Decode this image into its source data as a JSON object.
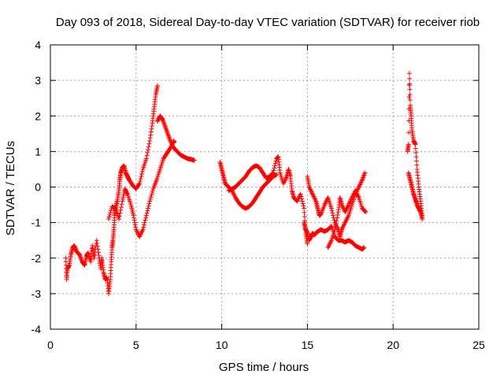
{
  "chart_data": {
    "type": "scatter",
    "title": "Day 093 of 2018, Sidereal Day-to-day VTEC variation (SDTVAR) for receiver riob",
    "xlabel": "GPS time / hours",
    "ylabel": "SDTVAR / TECUs",
    "xlim": [
      0,
      25
    ],
    "ylim": [
      -4,
      4
    ],
    "x_ticks": [
      0,
      5,
      10,
      15,
      20,
      25
    ],
    "y_ticks": [
      -4,
      -3,
      -2,
      -1,
      0,
      1,
      2,
      3,
      4
    ],
    "x_tick_labels": [
      "0",
      "5",
      "10",
      "15",
      "20",
      "25"
    ],
    "y_tick_labels": [
      "-4",
      "-3",
      "-2",
      "-1",
      "0",
      "1",
      "2",
      "3",
      "4"
    ],
    "grid": true,
    "marker": "+",
    "series": [
      {
        "name": "SDTVAR",
        "color": "#ff0000",
        "segments": [
          [
            [
              0.9,
              -2.0
            ],
            [
              0.95,
              -2.6
            ],
            [
              1.0,
              -2.3
            ],
            [
              1.1,
              -2.2
            ],
            [
              1.2,
              -1.9
            ],
            [
              1.3,
              -1.7
            ],
            [
              1.4,
              -1.65
            ],
            [
              1.5,
              -1.8
            ],
            [
              1.7,
              -1.9
            ],
            [
              1.85,
              -2.1
            ],
            [
              2.0,
              -2.2
            ],
            [
              2.1,
              -1.95
            ],
            [
              2.2,
              -1.85
            ],
            [
              2.35,
              -2.1
            ],
            [
              2.45,
              -1.65
            ],
            [
              2.55,
              -2.0
            ],
            [
              2.7,
              -1.5
            ],
            [
              2.85,
              -2.0
            ],
            [
              2.95,
              -2.3
            ],
            [
              3.0,
              -2.0
            ],
            [
              3.1,
              -2.4
            ],
            [
              3.2,
              -2.6
            ],
            [
              3.3,
              -2.55
            ],
            [
              3.4,
              -3.0
            ],
            [
              3.5,
              -2.6
            ],
            [
              3.55,
              -2.1
            ],
            [
              3.6,
              -1.7
            ],
            [
              3.65,
              -1.5
            ],
            [
              3.7,
              -1.2
            ],
            [
              3.75,
              -0.8
            ],
            [
              3.8,
              -0.6
            ],
            [
              3.9,
              -0.4
            ],
            [
              4.0,
              -0.1
            ],
            [
              4.05,
              0.2
            ],
            [
              4.1,
              0.4
            ],
            [
              4.2,
              0.55
            ],
            [
              4.3,
              0.6
            ],
            [
              4.4,
              0.4
            ],
            [
              4.5,
              0.3
            ],
            [
              4.6,
              0.2
            ],
            [
              4.8,
              0.05
            ],
            [
              5.0,
              -0.05
            ],
            [
              5.2,
              0.1
            ],
            [
              5.4,
              0.5
            ],
            [
              5.6,
              0.8
            ],
            [
              5.8,
              1.3
            ],
            [
              5.95,
              1.8
            ],
            [
              6.05,
              2.2
            ],
            [
              6.15,
              2.6
            ],
            [
              6.25,
              2.85
            ]
          ],
          [
            [
              3.4,
              -0.9
            ],
            [
              3.6,
              -0.55
            ],
            [
              3.8,
              -0.6
            ],
            [
              4.0,
              -0.9
            ],
            [
              4.2,
              -0.4
            ],
            [
              4.35,
              -0.05
            ],
            [
              4.5,
              -0.2
            ],
            [
              4.7,
              -0.5
            ],
            [
              4.85,
              -0.8
            ],
            [
              5.0,
              -1.2
            ],
            [
              5.2,
              -1.4
            ],
            [
              5.4,
              -1.2
            ],
            [
              5.6,
              -0.8
            ],
            [
              5.8,
              -0.4
            ],
            [
              6.0,
              -0.05
            ],
            [
              6.2,
              0.2
            ],
            [
              6.4,
              0.5
            ],
            [
              6.6,
              0.8
            ],
            [
              6.8,
              0.95
            ],
            [
              7.0,
              1.1
            ],
            [
              7.2,
              1.3
            ],
            [
              7.2,
              1.25
            ]
          ],
          [
            [
              6.25,
              1.85
            ],
            [
              6.4,
              2.0
            ],
            [
              6.55,
              1.9
            ],
            [
              6.7,
              1.7
            ],
            [
              6.85,
              1.5
            ],
            [
              7.0,
              1.3
            ],
            [
              7.2,
              1.1
            ],
            [
              7.4,
              1.0
            ],
            [
              7.6,
              0.9
            ],
            [
              7.8,
              0.85
            ],
            [
              8.0,
              0.8
            ],
            [
              8.2,
              0.78
            ],
            [
              8.4,
              0.75
            ]
          ],
          [
            [
              9.9,
              0.7
            ],
            [
              10.0,
              0.5
            ],
            [
              10.1,
              0.3
            ],
            [
              10.2,
              0.1
            ],
            [
              10.4,
              0.0
            ],
            [
              10.6,
              -0.1
            ],
            [
              10.8,
              -0.3
            ],
            [
              11.0,
              -0.45
            ],
            [
              11.2,
              -0.55
            ],
            [
              11.4,
              -0.6
            ],
            [
              11.6,
              -0.55
            ],
            [
              11.8,
              -0.45
            ],
            [
              12.0,
              -0.3
            ],
            [
              12.2,
              -0.15
            ],
            [
              12.4,
              0.0
            ],
            [
              12.6,
              0.1
            ],
            [
              12.8,
              0.2
            ],
            [
              13.0,
              0.3
            ],
            [
              13.2,
              0.35
            ]
          ],
          [
            [
              10.4,
              -0.1
            ],
            [
              10.6,
              -0.05
            ],
            [
              10.8,
              0.0
            ],
            [
              11.0,
              0.1
            ],
            [
              11.2,
              0.2
            ],
            [
              11.4,
              0.3
            ],
            [
              11.6,
              0.45
            ],
            [
              11.8,
              0.55
            ],
            [
              12.0,
              0.6
            ],
            [
              12.2,
              0.55
            ],
            [
              12.4,
              0.4
            ],
            [
              12.6,
              0.25
            ],
            [
              12.8,
              0.3
            ],
            [
              13.0,
              0.4
            ],
            [
              13.2,
              0.8
            ],
            [
              13.3,
              0.85
            ],
            [
              13.4,
              0.4
            ],
            [
              13.6,
              0.1
            ],
            [
              13.8,
              0.3
            ],
            [
              13.9,
              0.5
            ],
            [
              14.0,
              0.3
            ],
            [
              14.1,
              -0.1
            ],
            [
              14.2,
              -0.3
            ],
            [
              14.4,
              -0.4
            ],
            [
              14.6,
              -0.2
            ],
            [
              14.8,
              -0.6
            ],
            [
              14.9,
              -1.3
            ],
            [
              15.0,
              -1.6
            ]
          ],
          [
            [
              14.8,
              -1.0
            ],
            [
              14.9,
              -1.2
            ],
            [
              15.0,
              -1.3
            ],
            [
              15.1,
              -1.5
            ],
            [
              15.2,
              -1.4
            ],
            [
              15.3,
              -1.3
            ],
            [
              15.4,
              -1.35
            ],
            [
              15.5,
              -1.3
            ],
            [
              15.6,
              -1.25
            ],
            [
              15.8,
              -1.2
            ],
            [
              16.0,
              -1.25
            ],
            [
              16.2,
              -1.2
            ],
            [
              16.4,
              -1.1
            ],
            [
              16.6,
              -1.4
            ],
            [
              16.8,
              -1.5
            ],
            [
              17.0,
              -1.5
            ],
            [
              17.2,
              -1.55
            ],
            [
              17.4,
              -1.5
            ],
            [
              17.6,
              -1.55
            ],
            [
              17.8,
              -1.65
            ],
            [
              18.0,
              -1.7
            ],
            [
              18.2,
              -1.75
            ],
            [
              18.3,
              -1.7
            ]
          ],
          [
            [
              15.0,
              0.3
            ],
            [
              15.1,
              0.0
            ],
            [
              15.3,
              -0.2
            ],
            [
              15.5,
              -0.4
            ],
            [
              15.6,
              -0.6
            ],
            [
              15.7,
              -0.8
            ],
            [
              15.8,
              -0.75
            ],
            [
              16.0,
              -0.5
            ],
            [
              16.2,
              -0.3
            ],
            [
              16.4,
              -0.6
            ],
            [
              16.6,
              -1.0
            ],
            [
              16.8,
              -1.2
            ],
            [
              16.9,
              -1.4
            ],
            [
              17.0,
              -1.2
            ],
            [
              17.2,
              -1.0
            ],
            [
              17.4,
              -0.8
            ],
            [
              17.6,
              -0.5
            ],
            [
              17.8,
              -0.2
            ],
            [
              18.0,
              0.0
            ],
            [
              18.2,
              0.2
            ],
            [
              18.35,
              0.4
            ]
          ],
          [
            [
              16.2,
              -1.7
            ],
            [
              16.4,
              -1.5
            ],
            [
              16.6,
              -1.2
            ],
            [
              16.8,
              -0.7
            ],
            [
              16.9,
              -0.3
            ],
            [
              17.0,
              -0.5
            ],
            [
              17.2,
              -0.7
            ],
            [
              17.4,
              -0.5
            ],
            [
              17.6,
              -0.3
            ],
            [
              17.8,
              -0.1
            ],
            [
              18.0,
              -0.3
            ],
            [
              18.2,
              -0.6
            ],
            [
              18.4,
              -0.7
            ]
          ],
          [
            [
              20.85,
              1.0
            ],
            [
              20.9,
              1.2
            ],
            [
              20.95,
              3.2
            ],
            [
              21.0,
              2.3
            ],
            [
              21.05,
              2.0
            ],
            [
              21.1,
              1.6
            ],
            [
              21.2,
              1.3
            ],
            [
              21.3,
              1.2
            ],
            [
              21.4,
              0.5
            ],
            [
              21.5,
              0.0
            ],
            [
              21.6,
              -0.4
            ],
            [
              21.7,
              -0.8
            ]
          ],
          [
            [
              20.9,
              0.4
            ],
            [
              21.0,
              0.2
            ],
            [
              21.1,
              0.0
            ],
            [
              21.2,
              -0.2
            ],
            [
              21.3,
              -0.35
            ],
            [
              21.4,
              -0.5
            ],
            [
              21.5,
              -0.6
            ],
            [
              21.6,
              -0.7
            ],
            [
              21.7,
              -0.9
            ]
          ]
        ]
      }
    ]
  }
}
